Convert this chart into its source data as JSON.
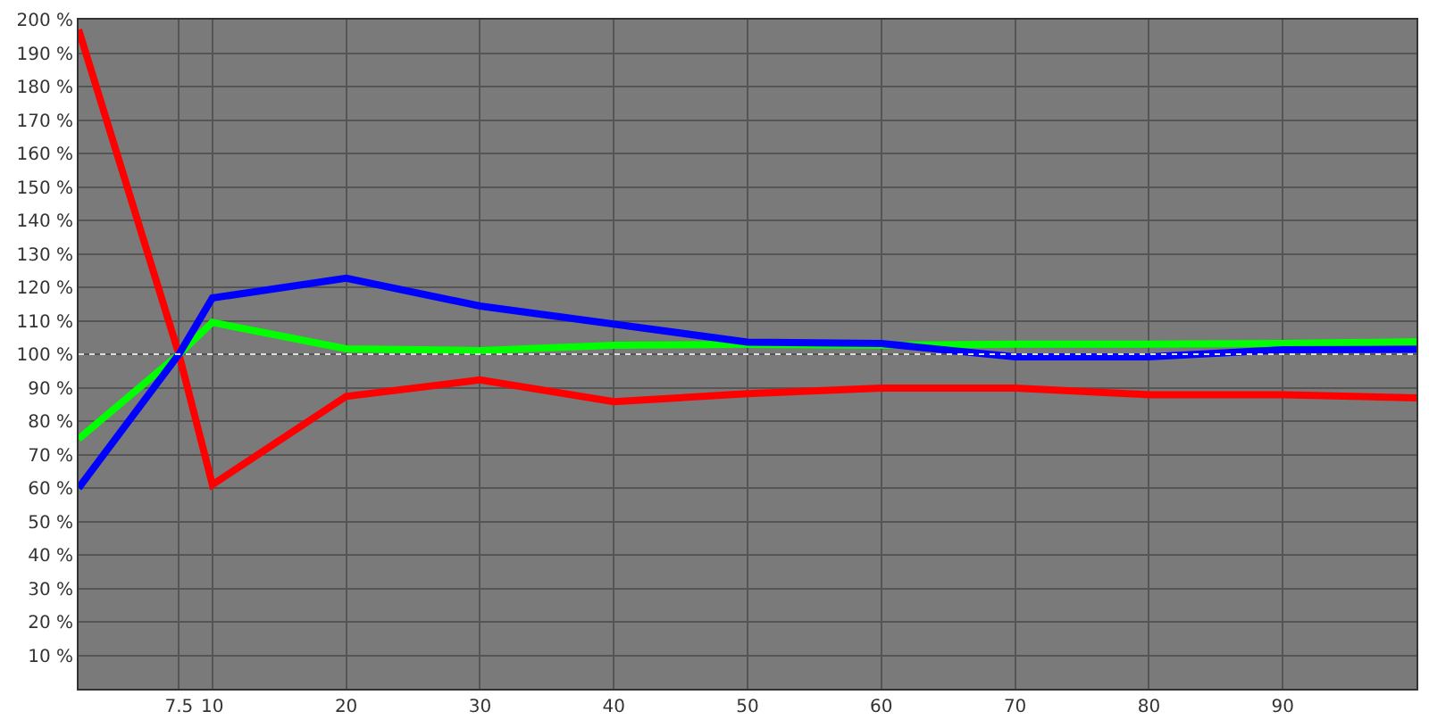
{
  "chart_data": {
    "type": "line",
    "x": [
      0,
      7.5,
      10,
      20,
      30,
      40,
      50,
      60,
      70,
      80,
      90,
      100
    ],
    "series": [
      {
        "color": "#ff0000",
        "values": [
          197,
          100,
          61,
          87.4,
          92.3,
          85.8,
          88.2,
          89.9,
          89.9,
          87.9,
          87.9,
          86.9
        ]
      },
      {
        "color": "#00ff00",
        "values": [
          74.7,
          100,
          109.5,
          101.6,
          101.1,
          102.7,
          102.9,
          102.7,
          103,
          103,
          103.2,
          103.7
        ]
      },
      {
        "color": "#0000ff",
        "values": [
          60,
          100,
          116.8,
          122.7,
          114.4,
          109,
          103.6,
          103.2,
          99.2,
          99.2,
          101.3,
          101.5
        ]
      }
    ],
    "xlim": [
      0,
      100
    ],
    "xticks": [
      {
        "value": 7.5,
        "label": "7.5"
      },
      10,
      20,
      30,
      40,
      50,
      60,
      70,
      80,
      90
    ],
    "ylim": [
      0,
      200
    ],
    "yticks": [
      {
        "value": 10,
        "label": "10 %"
      },
      {
        "value": 20,
        "label": "20 %"
      },
      {
        "value": 30,
        "label": "30 %"
      },
      {
        "value": 40,
        "label": "40 %"
      },
      {
        "value": 50,
        "label": "50 %"
      },
      {
        "value": 60,
        "label": "60 %"
      },
      {
        "value": 70,
        "label": "70 %"
      },
      {
        "value": 80,
        "label": "80 %"
      },
      {
        "value": 90,
        "label": "90 %"
      },
      {
        "value": 100,
        "label": "100 %"
      },
      {
        "value": 110,
        "label": "110 %"
      },
      {
        "value": 120,
        "label": "120 %"
      },
      {
        "value": 130,
        "label": "130 %"
      },
      {
        "value": 140,
        "label": "140 %"
      },
      {
        "value": 150,
        "label": "150 %"
      },
      {
        "value": 160,
        "label": "160 %"
      },
      {
        "value": 170,
        "label": "170 %"
      },
      {
        "value": 180,
        "label": "180 %"
      },
      {
        "value": 190,
        "label": "190 %"
      },
      {
        "value": 200,
        "label": "200 %"
      }
    ],
    "ref_lines": [
      {
        "axis": "y",
        "value": 100,
        "color": "#dddddd",
        "line_style": "dotted"
      }
    ],
    "grid": true,
    "legend": false,
    "marker": "none",
    "line_style": "solid"
  }
}
